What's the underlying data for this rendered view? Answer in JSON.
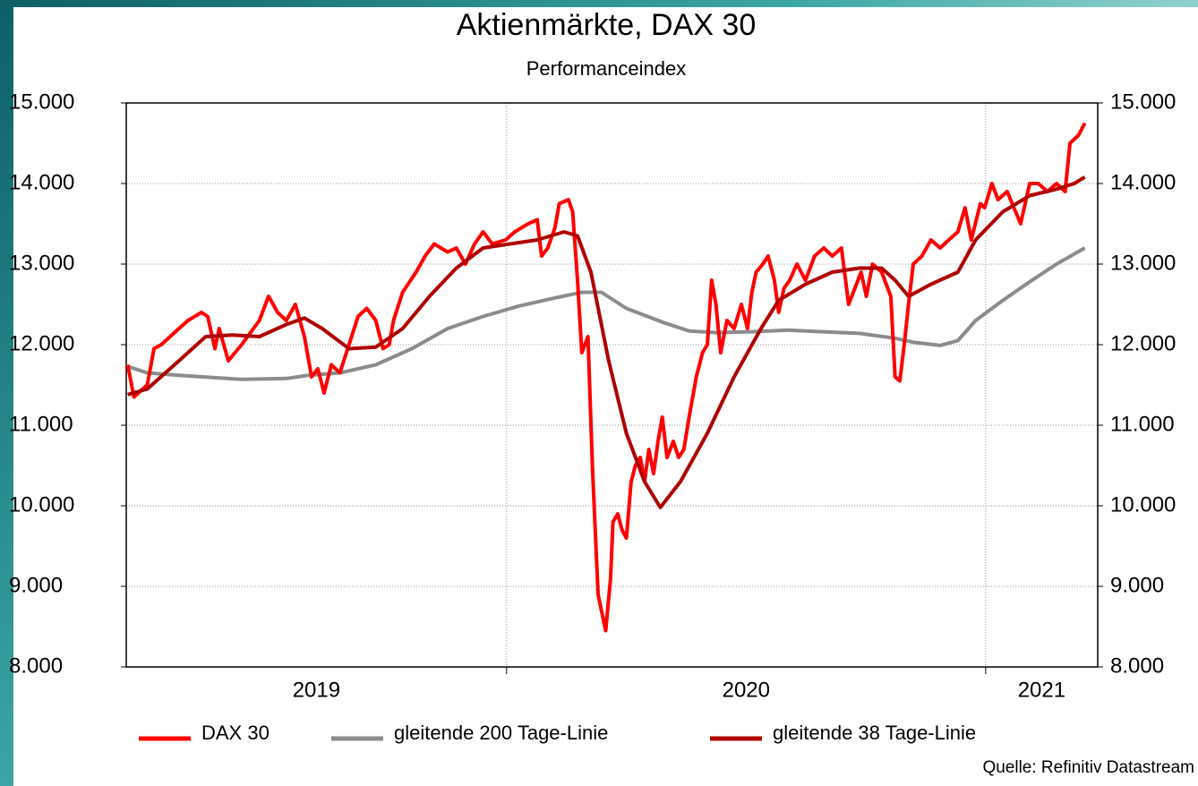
{
  "chart_data": {
    "type": "line",
    "title": "Aktienmärkte, DAX 30",
    "subtitle": "Performanceindex",
    "source": "Quelle: Refinitiv Datastream",
    "xlim": [
      2019.206,
      2021.234
    ],
    "xticks": [
      2020,
      2021
    ],
    "x_labels": [
      2019,
      2020,
      2021
    ],
    "ylim": [
      8000,
      15000
    ],
    "yticks": [
      {
        "value": 8000,
        "label": "8.000"
      },
      {
        "value": 9000,
        "label": "9.000"
      },
      {
        "value": 10000,
        "label": "10.000"
      },
      {
        "value": 11000,
        "label": "11.000"
      },
      {
        "value": 12000,
        "label": "12.000"
      },
      {
        "value": 13000,
        "label": "13.000"
      },
      {
        "value": 14000,
        "label": "14.000"
      },
      {
        "value": 15000,
        "label": "15.000"
      }
    ],
    "y2lim": [
      8000,
      15000
    ],
    "y2ticks": [
      {
        "value": 8000,
        "label": "8.000"
      },
      {
        "value": 9000,
        "label": "9.000"
      },
      {
        "value": 10000,
        "label": "10.000"
      },
      {
        "value": 11000,
        "label": "11.000"
      },
      {
        "value": 12000,
        "label": "12.000"
      },
      {
        "value": 13000,
        "label": "13.000"
      },
      {
        "value": 14000,
        "label": "14.000"
      },
      {
        "value": 15000,
        "label": "15.000"
      }
    ],
    "grid": true,
    "legend": "bottom",
    "series": [
      {
        "name": "DAX 30",
        "color": "#ff0000",
        "x": [
          2019.209,
          2019.222,
          2019.25,
          2019.264,
          2019.279,
          2019.316,
          2019.335,
          2019.363,
          2019.376,
          2019.391,
          2019.4,
          2019.419,
          2019.447,
          2019.484,
          2019.503,
          2019.522,
          2019.54,
          2019.559,
          2019.578,
          2019.593,
          2019.606,
          2019.619,
          2019.634,
          2019.652,
          2019.671,
          2019.69,
          2019.708,
          2019.727,
          2019.742,
          2019.755,
          2019.764,
          2019.783,
          2019.811,
          2019.83,
          2019.849,
          2019.877,
          2019.895,
          2019.914,
          2019.933,
          2019.951,
          2019.97,
          2019.998,
          2020.017,
          2020.045,
          2020.064,
          2020.073,
          2020.086,
          2020.101,
          2020.11,
          2020.129,
          2020.138,
          2020.148,
          2020.157,
          2020.17,
          2020.179,
          2020.191,
          2020.198,
          2020.207,
          2020.217,
          2020.222,
          2020.232,
          2020.241,
          2020.25,
          2020.26,
          2020.269,
          2020.279,
          2020.288,
          2020.297,
          2020.307,
          2020.316,
          2020.325,
          2020.335,
          2020.348,
          2020.359,
          2020.37,
          2020.381,
          2020.396,
          2020.409,
          2020.419,
          2020.428,
          2020.437,
          2020.447,
          2020.46,
          2020.475,
          2020.49,
          2020.503,
          2020.512,
          2020.521,
          2020.535,
          2020.546,
          2020.559,
          2020.568,
          2020.579,
          2020.591,
          2020.606,
          2020.624,
          2020.643,
          2020.662,
          2020.68,
          2020.699,
          2020.714,
          2020.727,
          2020.74,
          2020.751,
          2020.764,
          2020.783,
          2020.802,
          2020.811,
          2020.821,
          2020.83,
          2020.839,
          2020.849,
          2020.867,
          2020.886,
          2020.905,
          2020.923,
          2020.942,
          2020.957,
          2020.97,
          2020.989,
          2020.998,
          2021.013,
          2021.026,
          2021.045,
          2021.073,
          2021.092,
          2021.11,
          2021.129,
          2021.148,
          2021.166,
          2021.176,
          2021.185,
          2021.194,
          2021.207
        ],
        "values": [
          11750,
          11350,
          11500,
          11950,
          12000,
          12200,
          12300,
          12400,
          12350,
          11950,
          12200,
          11800,
          12000,
          12300,
          12600,
          12400,
          12300,
          12500,
          12100,
          11600,
          11700,
          11400,
          11750,
          11650,
          12000,
          12350,
          12450,
          12300,
          11950,
          12000,
          12300,
          12650,
          12900,
          13100,
          13250,
          13150,
          13200,
          13000,
          13250,
          13400,
          13250,
          13300,
          13400,
          13500,
          13550,
          13100,
          13200,
          13450,
          13750,
          13800,
          13650,
          12800,
          11900,
          12100,
          10500,
          8900,
          8700,
          8450,
          9100,
          9800,
          9900,
          9700,
          9600,
          10300,
          10500,
          10600,
          10300,
          10700,
          10400,
          10800,
          11100,
          10600,
          10800,
          10600,
          10700,
          11100,
          11600,
          11900,
          12000,
          12800,
          12500,
          11900,
          12300,
          12200,
          12500,
          12200,
          12650,
          12900,
          13000,
          13100,
          12800,
          12400,
          12700,
          12800,
          13000,
          12800,
          13100,
          13200,
          13100,
          13200,
          12500,
          12700,
          12900,
          12600,
          13000,
          12900,
          12600,
          11600,
          11550,
          12000,
          12500,
          13000,
          13100,
          13300,
          13200,
          13300,
          13400,
          13700,
          13300,
          13750,
          13700,
          14000,
          13800,
          13900,
          13500,
          14000,
          14000,
          13900,
          14000,
          13900,
          14500,
          14550,
          14600,
          14750
        ]
      },
      {
        "name": "gleitende 200 Tage-Linie",
        "color": "#8c8c8c",
        "x": [
          2019.209,
          2019.25,
          2019.316,
          2019.391,
          2019.447,
          2019.54,
          2019.587,
          2019.652,
          2019.727,
          2019.802,
          2019.877,
          2019.951,
          2020.026,
          2020.101,
          2020.157,
          2020.198,
          2020.25,
          2020.325,
          2020.381,
          2020.437,
          2020.512,
          2020.587,
          2020.662,
          2020.736,
          2020.811,
          2020.849,
          2020.905,
          2020.942,
          2020.979,
          2021.036,
          2021.092,
          2021.148,
          2021.207
        ],
        "values": [
          11730,
          11650,
          11620,
          11590,
          11570,
          11580,
          11620,
          11650,
          11750,
          11950,
          12200,
          12350,
          12480,
          12580,
          12650,
          12650,
          12450,
          12280,
          12170,
          12150,
          12160,
          12180,
          12160,
          12140,
          12080,
          12030,
          11990,
          12050,
          12300,
          12550,
          12780,
          13000,
          13200
        ]
      },
      {
        "name": "gleitende 38 Tage-Linie",
        "color": "#b00000",
        "x": [
          2019.209,
          2019.25,
          2019.316,
          2019.372,
          2019.428,
          2019.484,
          2019.54,
          2019.578,
          2019.615,
          2019.671,
          2019.727,
          2019.783,
          2019.839,
          2019.895,
          2019.951,
          2020.007,
          2020.064,
          2020.12,
          2020.148,
          2020.176,
          2020.213,
          2020.25,
          2020.288,
          2020.321,
          2020.363,
          2020.419,
          2020.475,
          2020.531,
          2020.568,
          2020.624,
          2020.68,
          2020.736,
          2020.783,
          2020.811,
          2020.839,
          2020.886,
          2020.942,
          2020.979,
          2021.036,
          2021.092,
          2021.148,
          2021.185,
          2021.207
        ],
        "values": [
          11380,
          11450,
          11800,
          12100,
          12120,
          12100,
          12250,
          12330,
          12200,
          11950,
          11970,
          12200,
          12600,
          12950,
          13200,
          13250,
          13300,
          13400,
          13350,
          12900,
          11800,
          10900,
          10300,
          9980,
          10300,
          10900,
          11600,
          12200,
          12550,
          12750,
          12900,
          12950,
          12950,
          12800,
          12600,
          12750,
          12900,
          13300,
          13650,
          13850,
          13930,
          14000,
          14080
        ]
      }
    ]
  }
}
